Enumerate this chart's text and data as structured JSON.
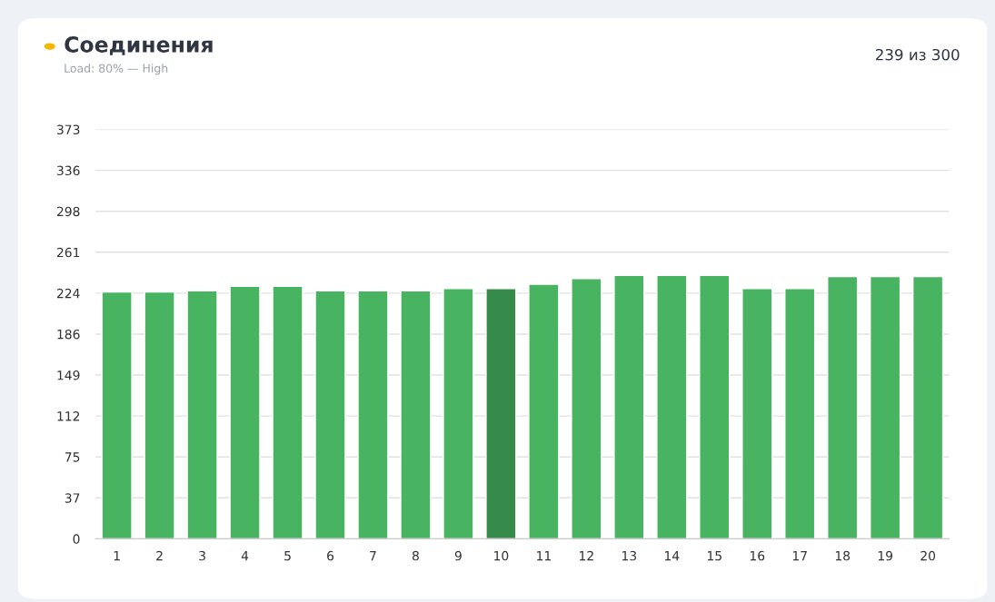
{
  "chart_data": {
    "type": "bar",
    "title": "Соединения",
    "subtitle": "Load: 80% — High",
    "annotations": [
      "239 из 300"
    ],
    "categories": [
      "1",
      "2",
      "3",
      "4",
      "5",
      "6",
      "7",
      "8",
      "9",
      "10",
      "11",
      "12",
      "13",
      "14",
      "15",
      "16",
      "17",
      "18",
      "19",
      "20"
    ],
    "values": [
      225,
      225,
      226,
      230,
      230,
      226,
      226,
      226,
      228,
      228,
      232,
      237,
      240,
      240,
      240,
      228,
      228,
      239,
      239,
      239
    ],
    "colors": [
      "#48b461",
      "#48b461",
      "#48b461",
      "#48b461",
      "#48b461",
      "#48b461",
      "#48b461",
      "#48b461",
      "#48b461",
      "#368a4a",
      "#48b461",
      "#48b461",
      "#48b461",
      "#48b461",
      "#48b461",
      "#48b461",
      "#48b461",
      "#48b461",
      "#48b461",
      "#48b461"
    ],
    "ylim": [
      0,
      373
    ],
    "yticks": [
      0,
      {
        "value": 37.3,
        "label": "37"
      },
      {
        "value": 74.6,
        "label": "75"
      },
      {
        "value": 111.9,
        "label": "112"
      },
      {
        "value": 149.2,
        "label": "149"
      },
      {
        "value": 186.5,
        "label": "186"
      },
      {
        "value": 223.8,
        "label": "224"
      },
      {
        "value": 261.1,
        "label": "261"
      },
      {
        "value": 298.4,
        "label": "298"
      },
      {
        "value": 335.7,
        "label": "336"
      },
      373
    ],
    "grid": "y",
    "legend": false
  }
}
